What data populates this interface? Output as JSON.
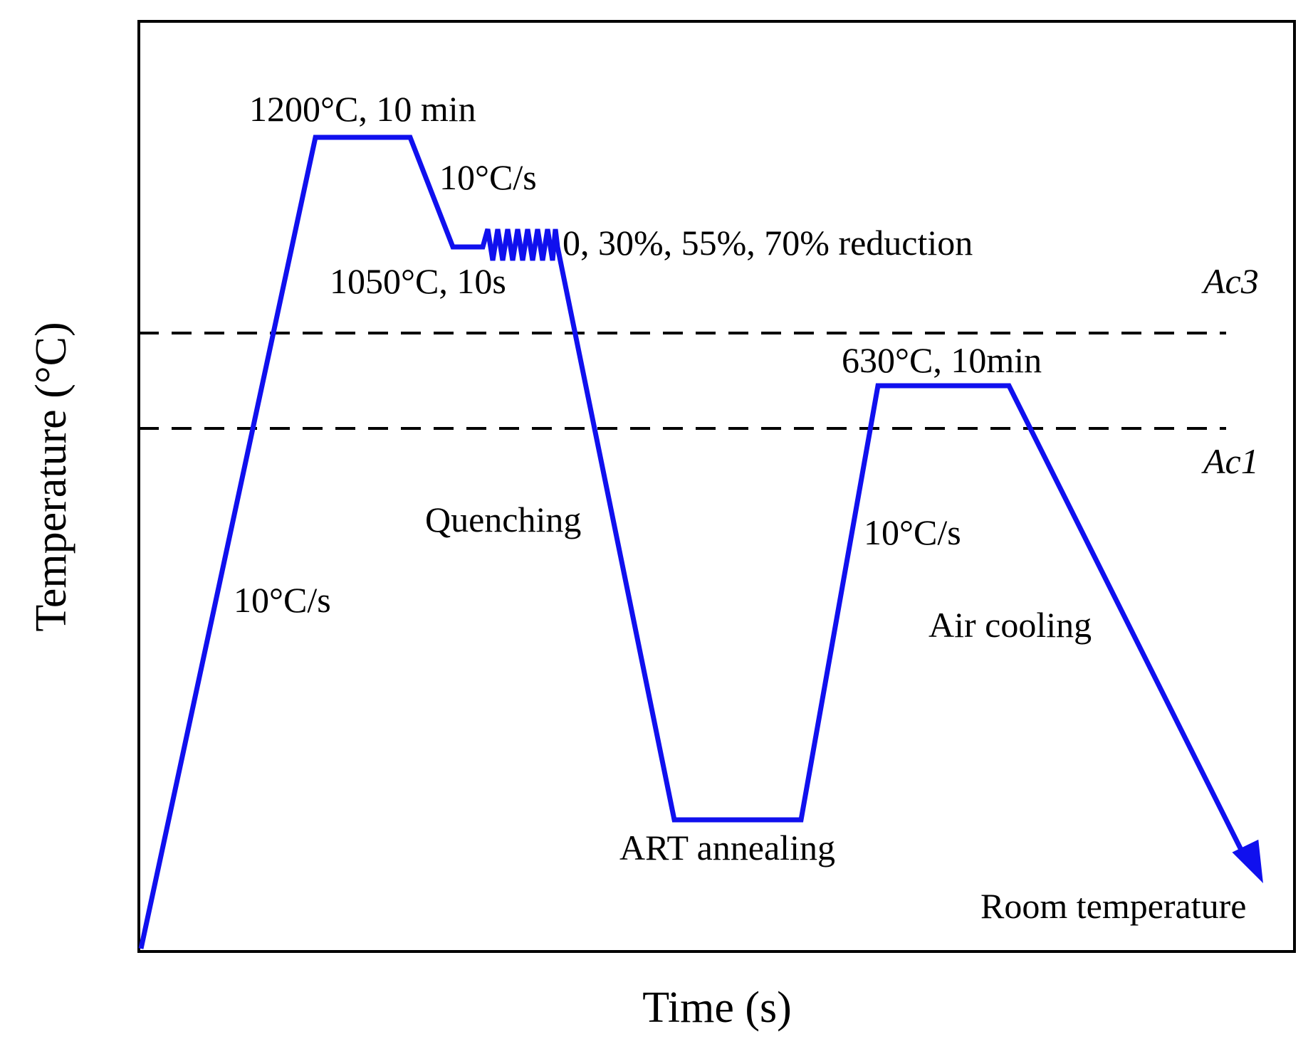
{
  "diagram": {
    "title": "",
    "axes": {
      "x_label": "Time (s)",
      "y_label": "Temperature (°C)"
    },
    "reference_lines": {
      "ac3": "Ac3",
      "ac1": "Ac1"
    },
    "annotations": {
      "soak_1200": "1200°C, 10 min",
      "cool_rate_top": "10°C/s",
      "reduction": "0, 30%, 55%, 70% reduction",
      "hold_1050": "1050°C, 10s",
      "anneal_630": "630°C, 10min",
      "quenching": "Quenching",
      "heat_rate_left": "10°C/s",
      "heat_rate_right": "10°C/s",
      "air_cooling": "Air cooling",
      "art_annealing": "ART annealing",
      "room_temperature": "Room temperature"
    },
    "colors": {
      "path": "#1010ee",
      "frame": "#000000",
      "dashed": "#000000"
    }
  }
}
